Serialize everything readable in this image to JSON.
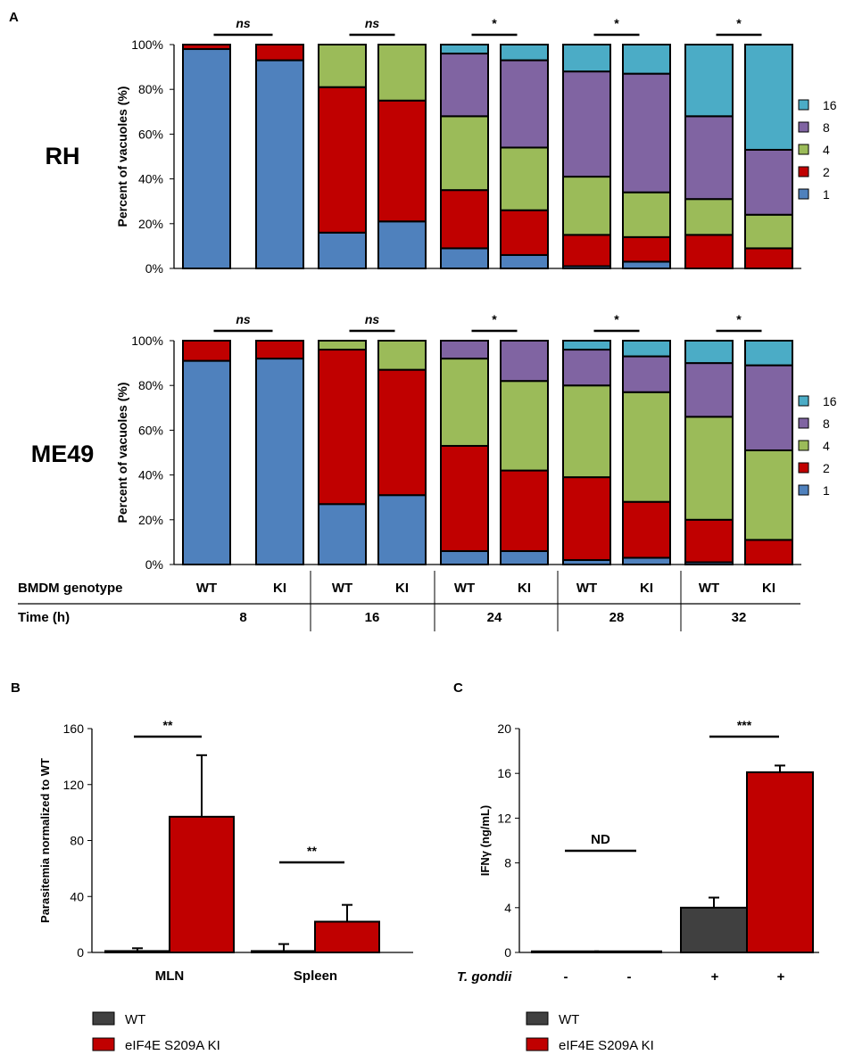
{
  "colors": {
    "c1": "#4F81BD",
    "c2": "#C00000",
    "c4": "#9BBB59",
    "c8": "#8064A2",
    "c16": "#4BACC6",
    "wt": "#404040",
    "ki": "#C00000"
  },
  "panelA": {
    "label": "A",
    "genotype_label": "BMDM genotype",
    "time_label": "Time (h)",
    "genotypes": [
      "WT",
      "KI",
      "WT",
      "KI",
      "WT",
      "KI",
      "WT",
      "KI",
      "WT",
      "KI"
    ],
    "times": [
      "8",
      "16",
      "24",
      "28",
      "32"
    ],
    "significance": [
      "ns",
      "ns",
      "*",
      "*",
      "*"
    ],
    "legend_keys": [
      "16",
      "8",
      "4",
      "2",
      "1"
    ],
    "y_ticks": [
      "100%",
      "80%",
      "60%",
      "40%",
      "20%",
      "0%"
    ]
  },
  "chart_data": [
    {
      "type": "bar",
      "stacked": true,
      "title": "RH",
      "ylabel": "Percent of vacuoles (%)",
      "ylim": [
        0,
        100
      ],
      "categories": [
        "8h WT",
        "8h KI",
        "16h WT",
        "16h KI",
        "24h WT",
        "24h KI",
        "28h WT",
        "28h KI",
        "32h WT",
        "32h KI"
      ],
      "series": [
        {
          "name": "1",
          "values": [
            98,
            93,
            16,
            21,
            9,
            6,
            1,
            3,
            0,
            0
          ]
        },
        {
          "name": "2",
          "values": [
            2,
            7,
            65,
            54,
            26,
            20,
            14,
            11,
            15,
            9
          ]
        },
        {
          "name": "4",
          "values": [
            0,
            0,
            19,
            25,
            33,
            28,
            26,
            20,
            16,
            15
          ]
        },
        {
          "name": "8",
          "values": [
            0,
            0,
            0,
            0,
            28,
            39,
            47,
            53,
            37,
            29
          ]
        },
        {
          "name": "16",
          "values": [
            0,
            0,
            0,
            0,
            4,
            7,
            12,
            13,
            32,
            47
          ]
        }
      ]
    },
    {
      "type": "bar",
      "stacked": true,
      "title": "ME49",
      "ylabel": "Percent of vacuoles (%)",
      "ylim": [
        0,
        100
      ],
      "categories": [
        "8h WT",
        "8h KI",
        "16h WT",
        "16h KI",
        "24h WT",
        "24h KI",
        "28h WT",
        "28h KI",
        "32h WT",
        "32h KI"
      ],
      "series": [
        {
          "name": "1",
          "values": [
            91,
            92,
            27,
            31,
            6,
            6,
            2,
            3,
            1,
            0
          ]
        },
        {
          "name": "2",
          "values": [
            9,
            8,
            69,
            56,
            47,
            36,
            37,
            25,
            19,
            11
          ]
        },
        {
          "name": "4",
          "values": [
            0,
            0,
            4,
            13,
            39,
            40,
            41,
            49,
            46,
            40
          ]
        },
        {
          "name": "8",
          "values": [
            0,
            0,
            0,
            0,
            8,
            18,
            16,
            16,
            24,
            38
          ]
        },
        {
          "name": "16",
          "values": [
            0,
            0,
            0,
            0,
            0,
            0,
            4,
            7,
            10,
            11
          ]
        }
      ]
    },
    {
      "type": "bar",
      "panel": "B",
      "ylabel": "Parasitemia normalized to WT",
      "ylim": [
        0,
        160
      ],
      "yticks": [
        "0",
        "40",
        "80",
        "120",
        "160"
      ],
      "categories": [
        "MLN",
        "Spleen"
      ],
      "series": [
        {
          "name": "WT",
          "values": [
            1,
            1
          ],
          "errors": [
            2,
            5
          ]
        },
        {
          "name": "eIF4E S209A KI",
          "values": [
            97,
            22
          ],
          "errors": [
            44,
            12
          ]
        }
      ],
      "significance": [
        "**",
        "**"
      ],
      "legend": [
        "WT",
        "eIF4E S209A KI"
      ]
    },
    {
      "type": "bar",
      "panel": "C",
      "ylabel": "IFNγ (ng/mL)",
      "ylim": [
        0,
        20
      ],
      "yticks": [
        "0",
        "4",
        "8",
        "12",
        "16",
        "20"
      ],
      "xlabel": "T. gondii",
      "categories": [
        "-",
        "-",
        "+",
        "+"
      ],
      "values": [
        0.1,
        0.1,
        4.0,
        16.1
      ],
      "errors": [
        0,
        0,
        0.9,
        0.6
      ],
      "bar_series": [
        "WT",
        "eIF4E S209A KI",
        "WT",
        "eIF4E S209A KI"
      ],
      "annotations": [
        "ND",
        "***"
      ],
      "legend": [
        "WT",
        "eIF4E S209A KI"
      ]
    }
  ]
}
